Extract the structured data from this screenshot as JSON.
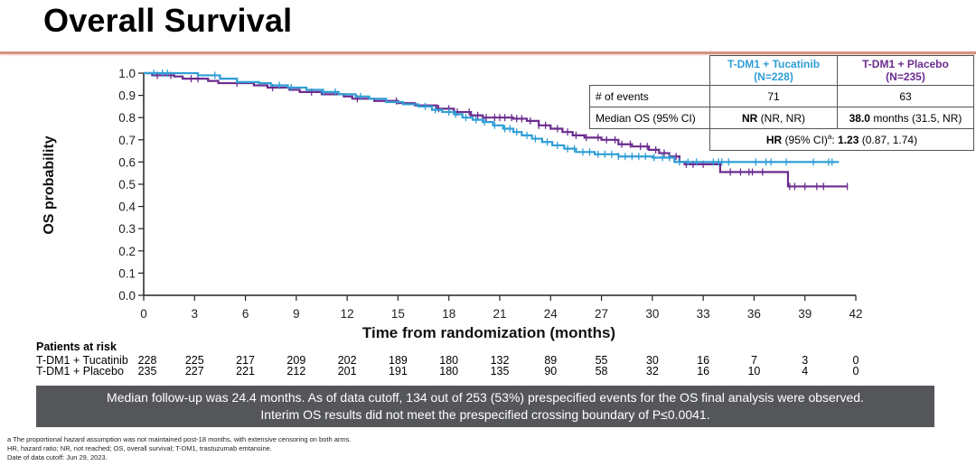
{
  "header": {
    "title": "Overall Survival"
  },
  "stats_table": {
    "columns": [
      {
        "name": "T-DM1 + Tucatinib",
        "n": "(N=228)"
      },
      {
        "name": "T-DM1 + Placebo",
        "n": "(N=235)"
      }
    ],
    "rows": [
      {
        "label": "# of events",
        "values": [
          "71",
          "63"
        ]
      },
      {
        "label": "Median OS (95% CI)",
        "values_bold": [
          "NR",
          "38.0"
        ],
        "values_rest": [
          " (NR, NR)",
          " months (31.5, NR)"
        ]
      }
    ],
    "hr": {
      "label_bold": "HR",
      "label": " (95% CI)",
      "superscript": "a",
      "colon": ": ",
      "value_bold": "1.23",
      "ci": " (0.87, 1.74)"
    }
  },
  "chart_data": {
    "type": "line",
    "subtype": "kaplan-meier step",
    "title": "Overall Survival",
    "xlabel": "Time from randomization (months)",
    "ylabel": "OS probability",
    "xlim": [
      0,
      42
    ],
    "ylim": [
      0,
      1.0
    ],
    "x_ticks": [
      0,
      3,
      6,
      9,
      12,
      15,
      18,
      21,
      24,
      27,
      30,
      33,
      36,
      39,
      42
    ],
    "y_ticks": [
      0.0,
      0.1,
      0.2,
      0.3,
      0.4,
      0.5,
      0.6,
      0.7,
      0.8,
      0.9,
      1.0
    ],
    "y_tick_labels": [
      "0.0",
      "0.1",
      "0.2",
      "0.3",
      "0.4",
      "0.5",
      "0.6",
      "0.7",
      "0.8",
      "0.9",
      "1.0"
    ],
    "grid": false,
    "series": [
      {
        "name": "T-DM1 + Tucatinib",
        "color": "#2f9ed6",
        "steps": [
          [
            0,
            1.0
          ],
          [
            3.2,
            0.99
          ],
          [
            4.5,
            0.975
          ],
          [
            5.5,
            0.96
          ],
          [
            6.8,
            0.955
          ],
          [
            7.5,
            0.945
          ],
          [
            8.5,
            0.935
          ],
          [
            9.6,
            0.925
          ],
          [
            10.5,
            0.915
          ],
          [
            11.5,
            0.905
          ],
          [
            12.5,
            0.895
          ],
          [
            13.3,
            0.885
          ],
          [
            14.3,
            0.87
          ],
          [
            15.3,
            0.86
          ],
          [
            16.2,
            0.85
          ],
          [
            17.0,
            0.835
          ],
          [
            17.6,
            0.825
          ],
          [
            18.3,
            0.815
          ],
          [
            18.8,
            0.8
          ],
          [
            19.4,
            0.79
          ],
          [
            20.0,
            0.78
          ],
          [
            20.6,
            0.765
          ],
          [
            21.2,
            0.75
          ],
          [
            21.8,
            0.735
          ],
          [
            22.3,
            0.72
          ],
          [
            22.9,
            0.705
          ],
          [
            23.5,
            0.69
          ],
          [
            24.1,
            0.675
          ],
          [
            24.8,
            0.66
          ],
          [
            25.5,
            0.645
          ],
          [
            26.6,
            0.635
          ],
          [
            28.0,
            0.625
          ],
          [
            30.0,
            0.62
          ],
          [
            31.3,
            0.6
          ],
          [
            41,
            0.6
          ]
        ],
        "censor_x": [
          0.6,
          1.1,
          1.4,
          4.2,
          8.0,
          8.7,
          10.6,
          11.3,
          12.8,
          16.6,
          17.2,
          18.0,
          18.4,
          19.0,
          19.6,
          20.1,
          20.7,
          21.3,
          21.6,
          22.0,
          22.6,
          23.1,
          23.8,
          24.4,
          25.0,
          25.4,
          25.9,
          26.3,
          26.8,
          27.2,
          27.6,
          28.0,
          28.4,
          28.8,
          29.2,
          29.6,
          30.1,
          30.6,
          31.0,
          31.6,
          32.1,
          32.6,
          33.6,
          33.9,
          34.1,
          34.5,
          36.1,
          36.7,
          37.0,
          37.9,
          39.5,
          40.4,
          40.6
        ]
      },
      {
        "name": "T-DM1 + Placebo",
        "color": "#6b2c8e",
        "steps": [
          [
            0,
            1.0
          ],
          [
            0.5,
            0.99
          ],
          [
            1.8,
            0.985
          ],
          [
            2.3,
            0.975
          ],
          [
            3.8,
            0.965
          ],
          [
            4.4,
            0.955
          ],
          [
            6.5,
            0.945
          ],
          [
            7.3,
            0.935
          ],
          [
            8.6,
            0.925
          ],
          [
            9.2,
            0.915
          ],
          [
            10.5,
            0.905
          ],
          [
            11.8,
            0.895
          ],
          [
            12.3,
            0.885
          ],
          [
            13.6,
            0.875
          ],
          [
            15.0,
            0.865
          ],
          [
            16.0,
            0.855
          ],
          [
            17.3,
            0.84
          ],
          [
            18.3,
            0.825
          ],
          [
            19.3,
            0.81
          ],
          [
            20.0,
            0.8
          ],
          [
            21.8,
            0.795
          ],
          [
            22.6,
            0.785
          ],
          [
            23.3,
            0.765
          ],
          [
            24.0,
            0.75
          ],
          [
            24.7,
            0.735
          ],
          [
            25.3,
            0.72
          ],
          [
            26.0,
            0.71
          ],
          [
            27.0,
            0.7
          ],
          [
            28.0,
            0.68
          ],
          [
            28.8,
            0.67
          ],
          [
            29.8,
            0.655
          ],
          [
            30.4,
            0.64
          ],
          [
            31.0,
            0.625
          ],
          [
            31.6,
            0.6
          ],
          [
            31.9,
            0.59
          ],
          [
            34.0,
            0.555
          ],
          [
            38.0,
            0.49
          ],
          [
            41.5,
            0.49
          ]
        ],
        "censor_x": [
          0.8,
          1.6,
          2.8,
          3.2,
          5.5,
          7.6,
          9.9,
          12.6,
          14.9,
          17.4,
          18.0,
          18.5,
          19.2,
          19.7,
          20.2,
          20.7,
          21.0,
          21.3,
          21.7,
          22.0,
          22.3,
          22.8,
          23.3,
          23.7,
          24.4,
          25.0,
          25.5,
          26.1,
          26.8,
          27.3,
          27.8,
          28.2,
          28.7,
          29.3,
          29.7,
          30.2,
          30.7,
          31.0,
          31.4,
          32.0,
          32.4,
          33.0,
          34.6,
          35.2,
          35.7,
          35.9,
          36.5,
          38.1,
          38.4,
          39.0,
          39.7,
          40.1,
          41.5
        ]
      }
    ],
    "patients_at_risk": {
      "title": "Patients at risk",
      "x": [
        0,
        3,
        6,
        9,
        12,
        15,
        18,
        21,
        24,
        27,
        30,
        33,
        36,
        39,
        42
      ],
      "rows": [
        {
          "label": "T-DM1 + Tucatinib",
          "values": [
            228,
            225,
            217,
            209,
            202,
            189,
            180,
            132,
            89,
            55,
            30,
            16,
            7,
            3,
            0
          ]
        },
        {
          "label": "T-DM1 + Placebo",
          "values": [
            235,
            227,
            221,
            212,
            201,
            191,
            180,
            135,
            90,
            58,
            32,
            16,
            10,
            4,
            0
          ]
        }
      ]
    }
  },
  "banner": {
    "line1": "Median follow-up was 24.4 months. As of data cutoff, 134 out of 253 (53%) prespecified events for the OS final analysis were observed.",
    "line2": "Interim OS results did not meet the prespecified crossing boundary of P≤0.0041."
  },
  "footnotes": [
    "a The proportional hazard assumption was not maintained post-18 months, with extensive censoring on both arms.",
    "HR, hazard ratio; NR, not reached; OS, overall survival; T-DM1, trastuzumab emtansine.",
    "Date of data cutoff: Jun 29, 2023."
  ]
}
